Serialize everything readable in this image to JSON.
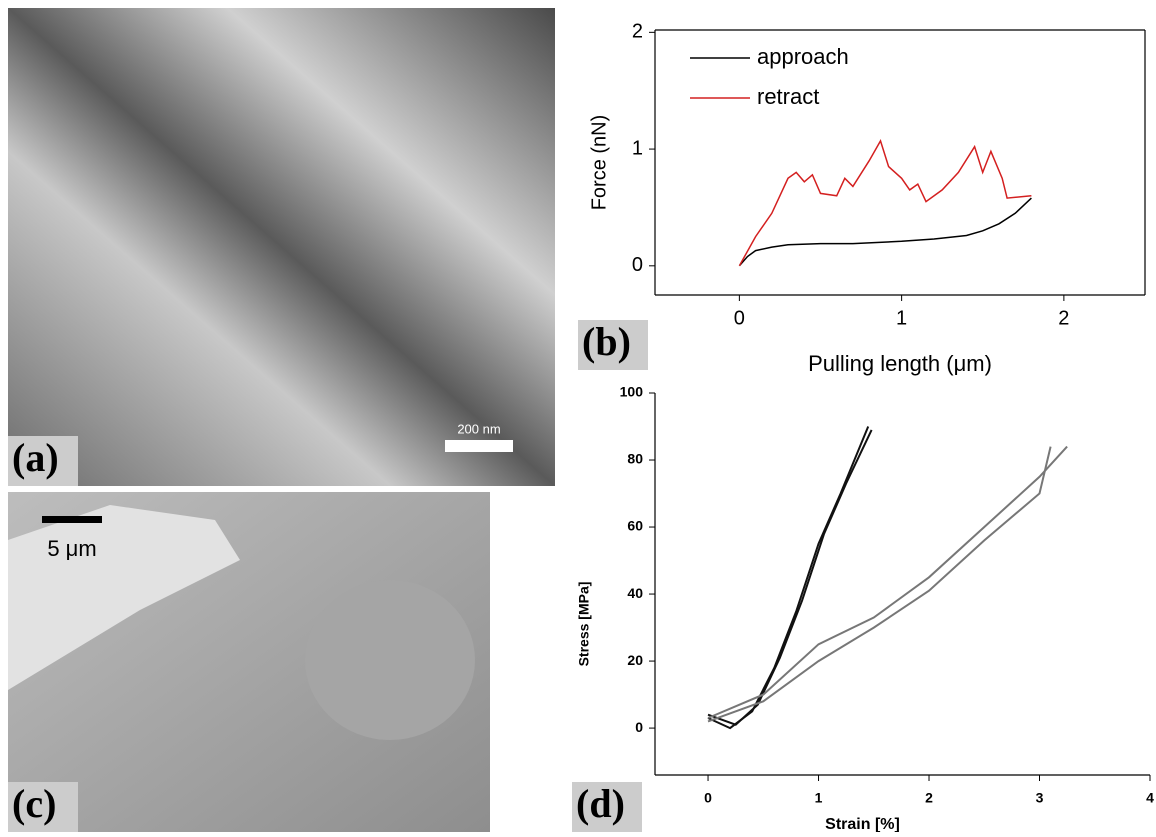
{
  "images": [
    {
      "label": "(a)",
      "scale_bar": "200 nm"
    },
    {
      "label": "(c)",
      "scale_bar": "5 μm"
    }
  ],
  "chart_data": [
    {
      "type": "line",
      "panel_label": "(b)",
      "x_label": "Pulling length (μm)",
      "y_label": "Force (nN)",
      "xlim": [
        -0.52,
        2.5
      ],
      "xticks": [
        0,
        1,
        2
      ],
      "ylim": [
        -0.25,
        2.02
      ],
      "yticks": [
        0,
        1,
        2
      ],
      "grid": false,
      "legend": "top-left",
      "series": [
        {
          "name": "approach",
          "color": "#000000",
          "x": [
            0,
            0.05,
            0.1,
            0.2,
            0.3,
            0.5,
            0.7,
            1.0,
            1.2,
            1.4,
            1.5,
            1.6,
            1.7,
            1.8
          ],
          "values": [
            0,
            0.08,
            0.13,
            0.16,
            0.18,
            0.19,
            0.19,
            0.21,
            0.23,
            0.26,
            0.3,
            0.36,
            0.45,
            0.58
          ]
        },
        {
          "name": "retract",
          "color": "#d42020",
          "x": [
            0,
            0.1,
            0.2,
            0.3,
            0.35,
            0.4,
            0.45,
            0.5,
            0.6,
            0.65,
            0.7,
            0.8,
            0.87,
            0.92,
            1.0,
            1.05,
            1.1,
            1.15,
            1.25,
            1.35,
            1.45,
            1.5,
            1.55,
            1.62,
            1.65,
            1.8
          ],
          "values": [
            0,
            0.25,
            0.45,
            0.75,
            0.8,
            0.72,
            0.78,
            0.62,
            0.6,
            0.75,
            0.68,
            0.9,
            1.07,
            0.85,
            0.75,
            0.65,
            0.7,
            0.55,
            0.65,
            0.8,
            1.02,
            0.8,
            0.98,
            0.75,
            0.58,
            0.6
          ]
        }
      ]
    },
    {
      "type": "line",
      "panel_label": "(d)",
      "x_label": "Strain [%]",
      "y_label": "Stress [MPa]",
      "xlim": [
        -0.48,
        4
      ],
      "xticks": [
        0,
        1,
        2,
        3,
        4
      ],
      "ylim": [
        -14,
        100
      ],
      "yticks": [
        0,
        20,
        40,
        60,
        80,
        100
      ],
      "grid": false,
      "series": [
        {
          "color": "#111111",
          "x": [
            0,
            0.2,
            0.4,
            0.6,
            0.8,
            1.0,
            1.2,
            1.45
          ],
          "values": [
            3,
            0,
            5,
            18,
            35,
            55,
            70,
            90
          ]
        },
        {
          "color": "#111111",
          "x": [
            0,
            0.25,
            0.45,
            0.65,
            0.85,
            1.05,
            1.25,
            1.48
          ],
          "values": [
            4,
            1,
            7,
            21,
            38,
            58,
            73,
            89
          ]
        },
        {
          "color": "#777777",
          "x": [
            0,
            0.5,
            1.0,
            1.5,
            2.0,
            2.5,
            3.0,
            3.25
          ],
          "values": [
            3,
            10,
            25,
            33,
            45,
            60,
            75,
            84
          ]
        },
        {
          "color": "#777777",
          "x": [
            0,
            0.5,
            1.0,
            1.5,
            2.0,
            2.5,
            3.0,
            3.1
          ],
          "values": [
            2,
            8,
            20,
            30,
            41,
            56,
            70,
            84
          ]
        }
      ]
    }
  ]
}
